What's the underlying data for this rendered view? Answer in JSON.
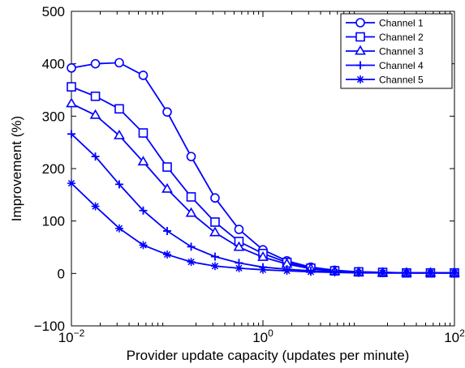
{
  "chart_data": {
    "type": "line",
    "xlabel": "Provider update capacity (updates per minute)",
    "ylabel": "Improvement (%)",
    "x_scale": "log",
    "xlim": [
      0.01,
      100
    ],
    "ylim": [
      -100,
      500
    ],
    "x_ticks": [
      {
        "value": 0.01,
        "base": "10",
        "exp": "−2"
      },
      {
        "value": 1,
        "base": "10",
        "exp": "0"
      },
      {
        "value": 100,
        "base": "10",
        "exp": "2"
      }
    ],
    "y_ticks": [
      {
        "value": -100,
        "label": "−100"
      },
      {
        "value": 0,
        "label": "0"
      },
      {
        "value": 100,
        "label": "100"
      },
      {
        "value": 200,
        "label": "200"
      },
      {
        "value": 300,
        "label": "300"
      },
      {
        "value": 400,
        "label": "400"
      },
      {
        "value": 500,
        "label": "500"
      }
    ],
    "grid": false,
    "legend_position": "top-right",
    "line_color": "#0000ff",
    "x": [
      0.01,
      0.0178,
      0.0316,
      0.0562,
      0.1,
      0.178,
      0.316,
      0.562,
      1.0,
      1.78,
      3.16,
      5.62,
      10,
      17.8,
      31.6,
      56.2,
      100
    ],
    "series": [
      {
        "name": "Channel 1",
        "marker": "circle",
        "values": [
          392,
          400,
          402,
          378,
          308,
          223,
          144,
          84,
          45,
          24,
          12,
          6,
          3,
          2,
          1,
          1,
          1
        ]
      },
      {
        "name": "Channel 2",
        "marker": "square",
        "values": [
          356,
          338,
          314,
          268,
          203,
          146,
          98,
          61,
          38,
          21,
          10,
          5,
          3,
          2,
          1,
          1,
          1
        ]
      },
      {
        "name": "Channel 3",
        "marker": "triangle",
        "values": [
          324,
          302,
          263,
          213,
          161,
          115,
          78,
          50,
          31,
          18,
          9,
          4,
          2,
          1,
          1,
          1,
          1
        ]
      },
      {
        "name": "Channel 4",
        "marker": "plus",
        "values": [
          266,
          223,
          170,
          120,
          81,
          51,
          32,
          20,
          12,
          8,
          5,
          3,
          2,
          1,
          1,
          1,
          1
        ]
      },
      {
        "name": "Channel 5",
        "marker": "asterisk",
        "values": [
          172,
          128,
          86,
          54,
          36,
          22,
          14,
          10,
          7,
          5,
          3,
          2,
          1,
          1,
          1,
          1,
          1
        ]
      }
    ]
  }
}
